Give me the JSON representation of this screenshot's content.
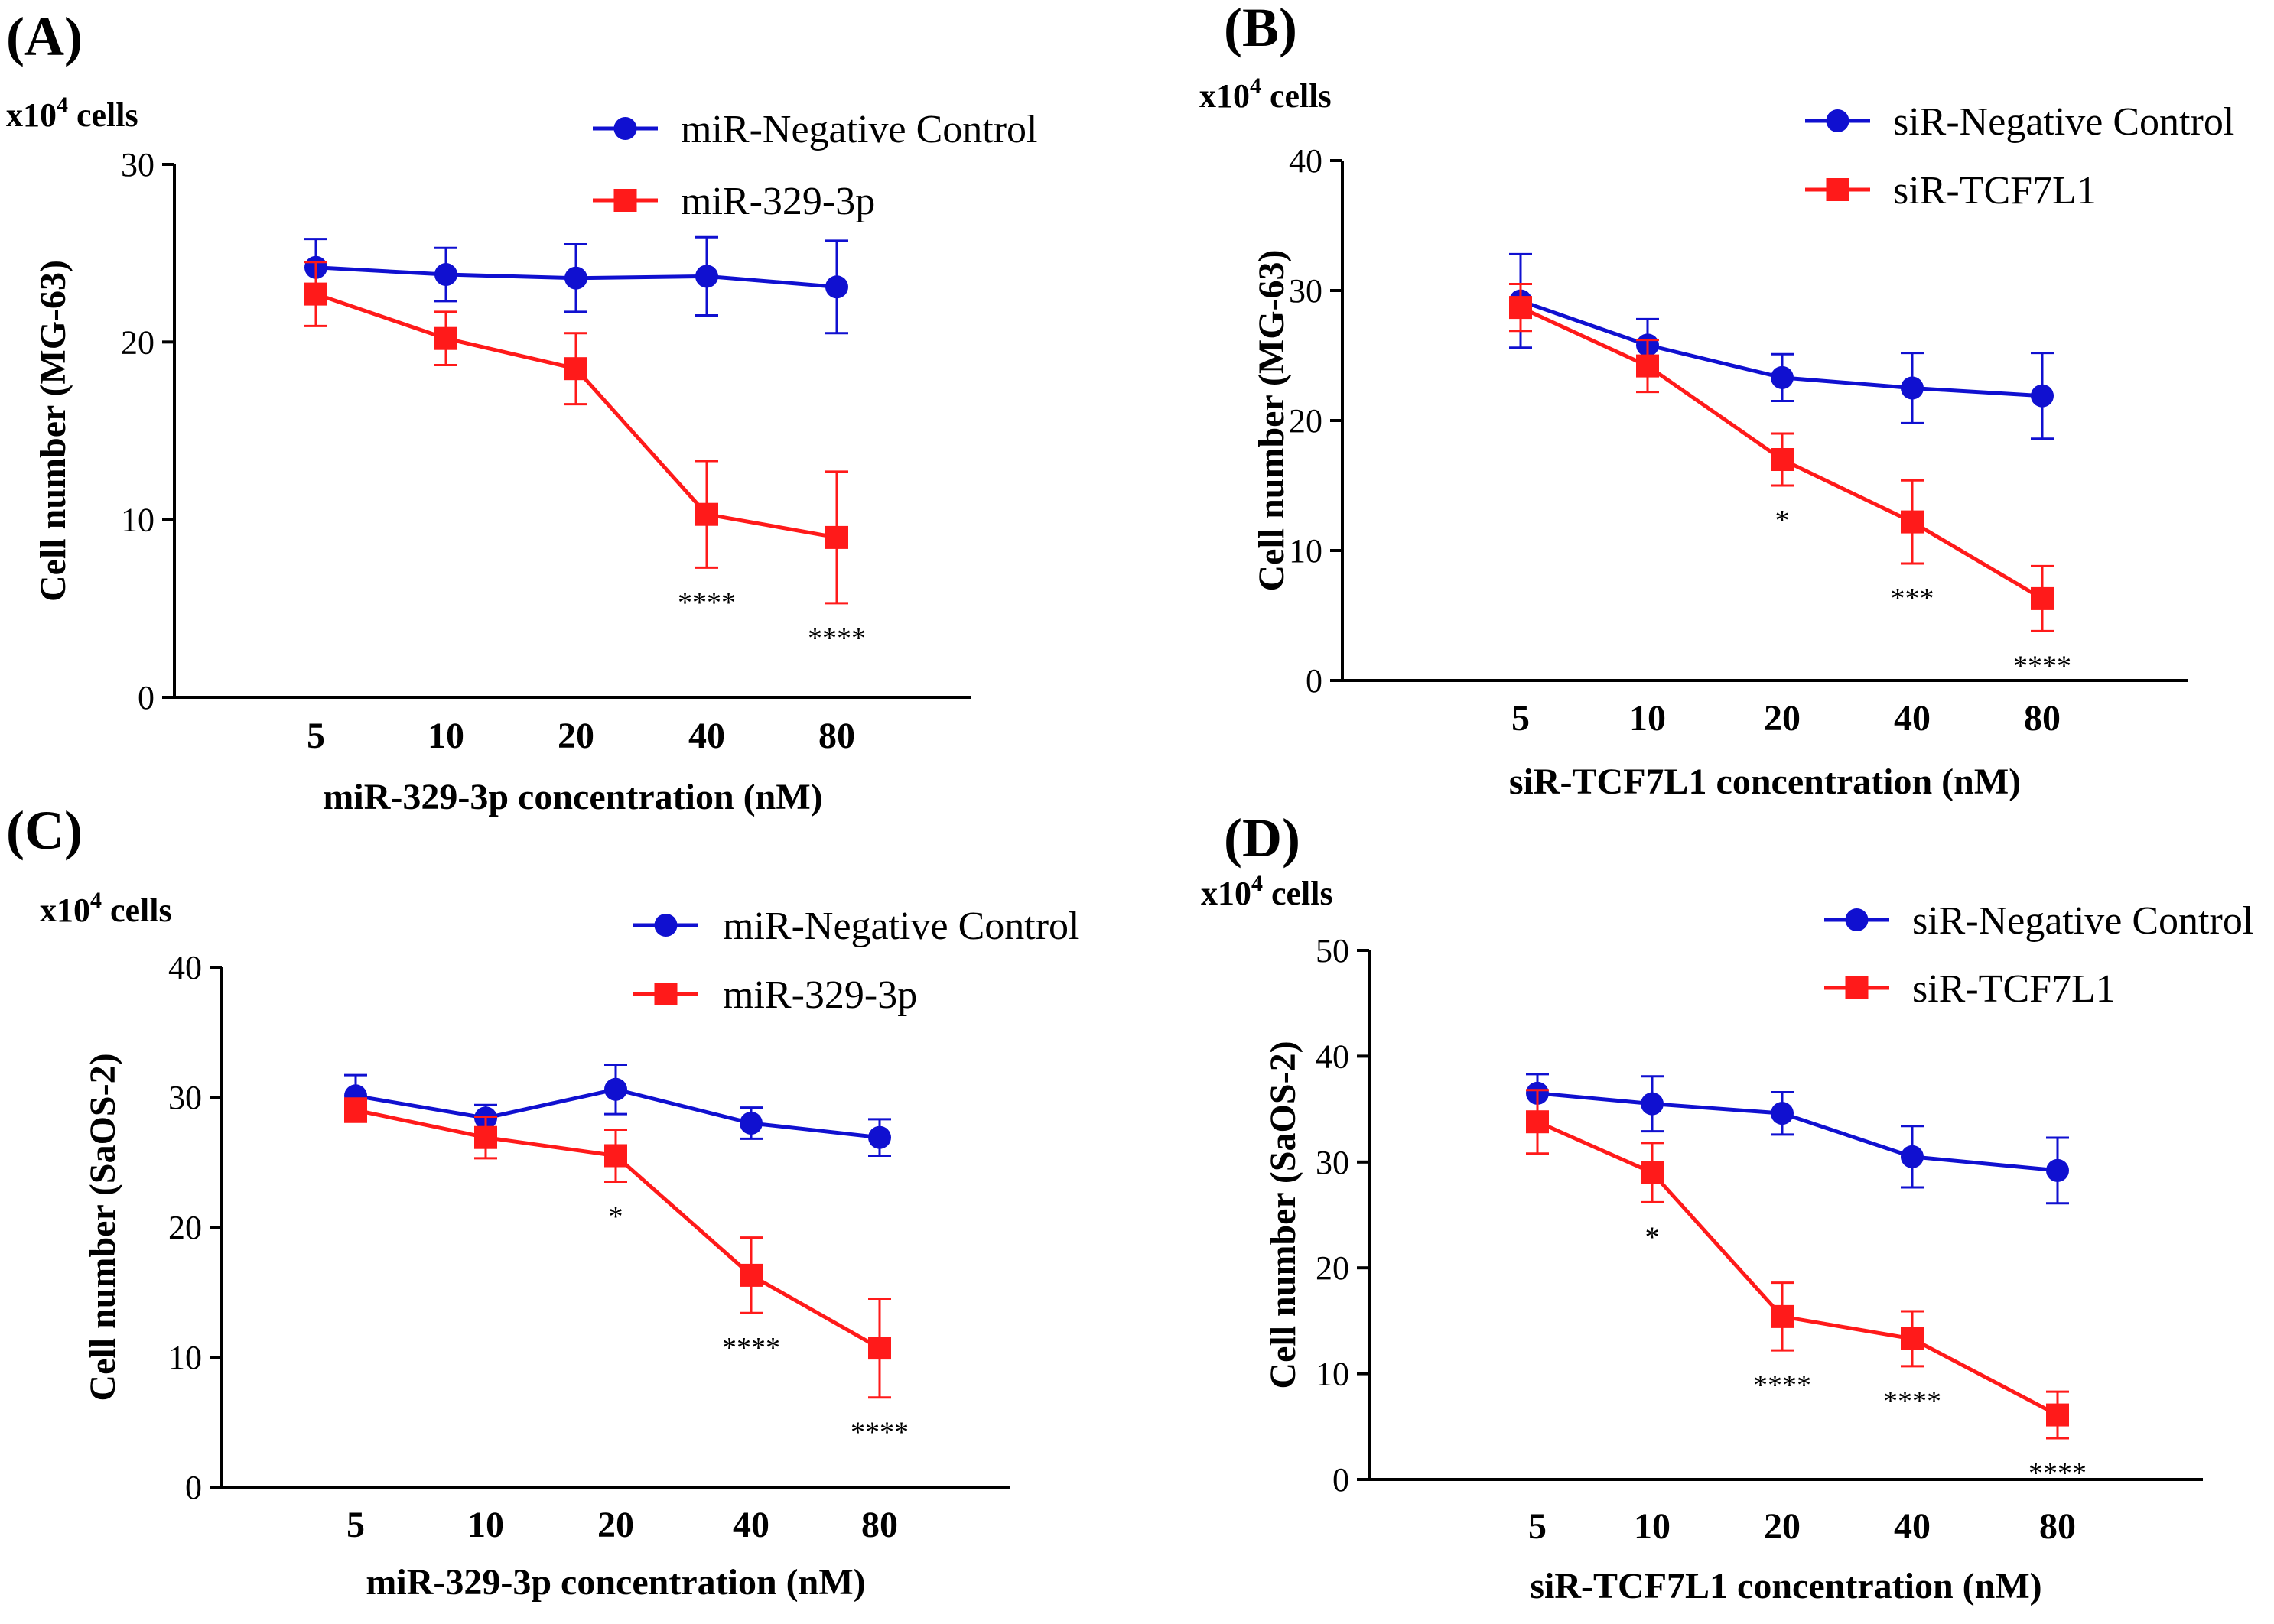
{
  "chart_data": [
    {
      "type": "line",
      "panel_label": "(A)",
      "unit_label": "x10",
      "unit_exp": "4",
      "unit_suffix": " cells",
      "ylabel": "Cell number (MG-63)",
      "xlabel": "miR-329-3p concentration (nM)",
      "categories": [
        "5",
        "10",
        "20",
        "40",
        "80"
      ],
      "ylim": [
        0,
        30
      ],
      "yticks": [
        "0",
        "10",
        "20",
        "30"
      ],
      "legend_position": "top-right",
      "series": [
        {
          "name": "miR-Negative Control",
          "color": "#1010d0",
          "marker": "circle",
          "values": [
            24.2,
            23.8,
            23.6,
            23.7,
            23.1
          ],
          "errors": [
            1.6,
            1.5,
            1.9,
            2.2,
            2.6
          ]
        },
        {
          "name": "miR-329-3p",
          "color": "#ff1a1a",
          "marker": "square",
          "values": [
            22.7,
            20.2,
            18.5,
            10.3,
            9.0
          ],
          "errors": [
            1.8,
            1.5,
            2.0,
            3.0,
            3.7
          ]
        }
      ],
      "significance": [
        "",
        "",
        "",
        "****",
        "****"
      ]
    },
    {
      "type": "line",
      "panel_label": "(B)",
      "unit_label": "x10",
      "unit_exp": "4",
      "unit_suffix": " cells",
      "ylabel": "Cell number (MG-63)",
      "xlabel": "siR-TCF7L1 concentration (nM)",
      "categories": [
        "5",
        "10",
        "20",
        "40",
        "80"
      ],
      "ylim": [
        0,
        40
      ],
      "yticks": [
        "0",
        "10",
        "20",
        "30",
        "40"
      ],
      "legend_position": "top-right",
      "series": [
        {
          "name": "siR-Negative Control",
          "color": "#1010d0",
          "marker": "circle",
          "values": [
            29.2,
            25.8,
            23.3,
            22.5,
            21.9
          ],
          "errors": [
            3.6,
            2.0,
            1.8,
            2.7,
            3.3
          ]
        },
        {
          "name": "siR-TCF7L1",
          "color": "#ff1a1a",
          "marker": "square",
          "values": [
            28.7,
            24.2,
            17.0,
            12.2,
            6.3
          ],
          "errors": [
            1.8,
            2.0,
            2.0,
            3.2,
            2.5
          ]
        }
      ],
      "significance": [
        "",
        "",
        "*",
        "***",
        "****"
      ]
    },
    {
      "type": "line",
      "panel_label": "(C)",
      "unit_label": "x10",
      "unit_exp": "4",
      "unit_suffix": " cells",
      "ylabel": "Cell number (SaOS-2)",
      "xlabel": "miR-329-3p concentration (nM)",
      "categories": [
        "5",
        "10",
        "20",
        "40",
        "80"
      ],
      "ylim": [
        0,
        40
      ],
      "yticks": [
        "0",
        "10",
        "20",
        "30",
        "40"
      ],
      "legend_position": "top-right",
      "series": [
        {
          "name": "miR-Negative Control",
          "color": "#1010d0",
          "marker": "circle",
          "values": [
            30.1,
            28.4,
            30.6,
            28.0,
            26.9
          ],
          "errors": [
            1.6,
            1.0,
            1.9,
            1.2,
            1.4
          ]
        },
        {
          "name": "miR-329-3p",
          "color": "#ff1a1a",
          "marker": "square",
          "values": [
            29.0,
            26.9,
            25.5,
            16.3,
            10.7
          ],
          "errors": [
            0.9,
            1.6,
            2.0,
            2.9,
            3.8
          ]
        }
      ],
      "significance": [
        "",
        "",
        "*",
        "****",
        "****"
      ]
    },
    {
      "type": "line",
      "panel_label": "(D)",
      "unit_label": "x10",
      "unit_exp": "4",
      "unit_suffix": " cells",
      "ylabel": "Cell number (SaOS-2)",
      "xlabel": "siR-TCF7L1 concentration (nM)",
      "categories": [
        "5",
        "10",
        "20",
        "40",
        "80"
      ],
      "ylim": [
        0,
        50
      ],
      "yticks": [
        "0",
        "10",
        "20",
        "30",
        "40",
        "50"
      ],
      "legend_position": "top-right",
      "series": [
        {
          "name": "siR-Negative Control",
          "color": "#1010d0",
          "marker": "circle",
          "values": [
            36.5,
            35.5,
            34.6,
            30.5,
            29.2
          ],
          "errors": [
            1.8,
            2.6,
            2.0,
            2.9,
            3.1
          ]
        },
        {
          "name": "siR-TCF7L1",
          "color": "#ff1a1a",
          "marker": "square",
          "values": [
            33.8,
            29.0,
            15.4,
            13.3,
            6.1
          ],
          "errors": [
            3.0,
            2.8,
            3.2,
            2.6,
            2.2
          ]
        }
      ],
      "significance": [
        "",
        "*",
        "****",
        "****",
        "****"
      ]
    }
  ]
}
